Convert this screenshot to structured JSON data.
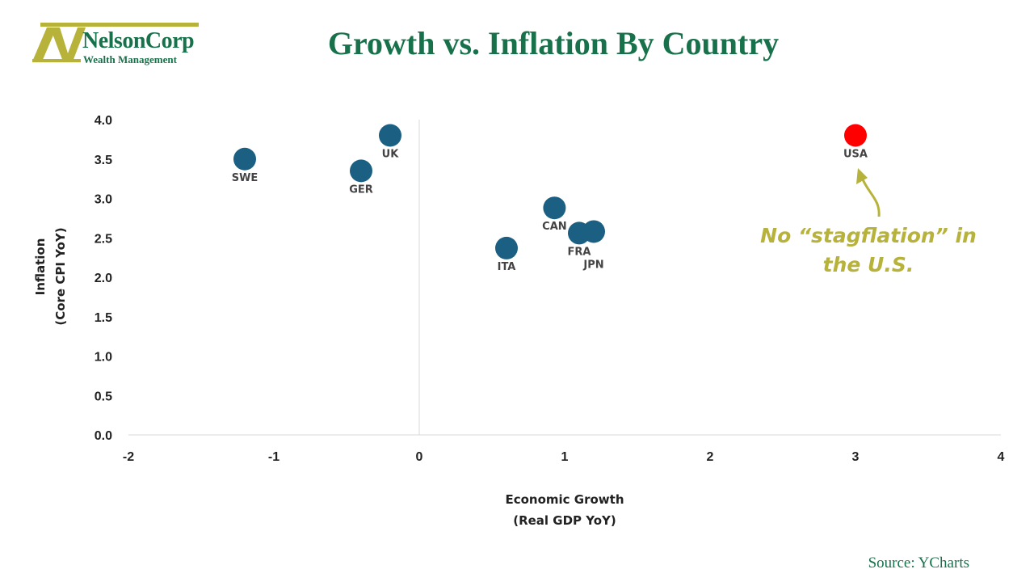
{
  "logo": {
    "name": "NelsonCorp",
    "subtitle": "Wealth Management"
  },
  "title": "Growth vs. Inflation By Country",
  "source": "Source: YCharts",
  "annotation": {
    "line1": "No “stagflation” in",
    "line2": "the U.S."
  },
  "colors": {
    "brand": "#17714a",
    "logo_accent": "#b7b23a",
    "point": "#1b5f82",
    "highlight": "#ff0000",
    "annotation": "#b7b23a"
  },
  "chart_data": {
    "type": "scatter",
    "xlabel": [
      "Economic Growth",
      "(Real GDP YoY)"
    ],
    "ylabel": [
      "Inflation",
      "(Core CPI YoY)"
    ],
    "xlim": [
      -2,
      4
    ],
    "ylim": [
      0,
      4
    ],
    "xticks": [
      "-2",
      "-1",
      "0",
      "1",
      "2",
      "3",
      "4"
    ],
    "yticks": [
      "0.0",
      "0.5",
      "1.0",
      "1.5",
      "2.0",
      "2.5",
      "3.0",
      "3.5",
      "4.0"
    ],
    "grid": false,
    "points": [
      {
        "label": "SWE",
        "x": -1.2,
        "y": 3.5,
        "highlight": false,
        "label_pos": "below"
      },
      {
        "label": "UK",
        "x": -0.2,
        "y": 3.8,
        "highlight": false,
        "label_pos": "below"
      },
      {
        "label": "GER",
        "x": -0.4,
        "y": 3.35,
        "highlight": false,
        "label_pos": "below"
      },
      {
        "label": "CAN",
        "x": 0.93,
        "y": 2.88,
        "highlight": false,
        "label_pos": "below"
      },
      {
        "label": "ITA",
        "x": 0.6,
        "y": 2.37,
        "highlight": false,
        "label_pos": "below"
      },
      {
        "label": "FRA",
        "x": 1.1,
        "y": 2.56,
        "highlight": false,
        "label_pos": "below"
      },
      {
        "label": "JPN",
        "x": 1.2,
        "y": 2.58,
        "highlight": false,
        "label_pos": "below-far"
      },
      {
        "label": "USA",
        "x": 3.0,
        "y": 3.8,
        "highlight": true,
        "label_pos": "below"
      }
    ]
  }
}
